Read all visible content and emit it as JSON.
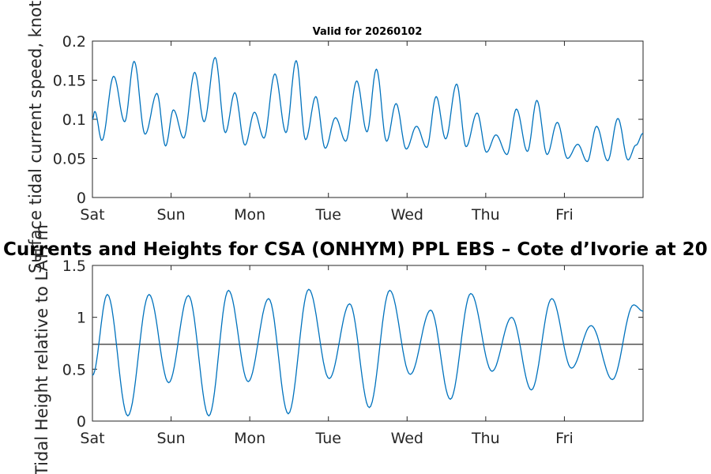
{
  "chart_data": [
    {
      "type": "line",
      "title": "Valid for 20260102",
      "xlabel": "",
      "ylabel": "Surface tidal current speed, knots",
      "ylim": [
        0,
        0.2
      ],
      "xlim": [
        0,
        7
      ],
      "yticks": [
        0,
        0.05,
        0.1,
        0.15,
        0.2
      ],
      "ytick_labels": [
        "0",
        "0.05",
        "0.1",
        "0.15",
        "0.2"
      ],
      "xtick_positions": [
        0,
        1,
        2,
        3,
        4,
        5,
        6
      ],
      "xtick_labels": [
        "Sat",
        "Sun",
        "Mon",
        "Tue",
        "Wed",
        "Thu",
        "Fri"
      ],
      "line_color": "#0072BD",
      "series": [
        {
          "name": "speed",
          "x": [
            0.0,
            0.03,
            0.12,
            0.27,
            0.41,
            0.53,
            0.67,
            0.82,
            0.93,
            1.03,
            1.16,
            1.3,
            1.42,
            1.56,
            1.69,
            1.81,
            1.94,
            2.06,
            2.18,
            2.32,
            2.46,
            2.59,
            2.71,
            2.84,
            2.96,
            3.09,
            3.22,
            3.36,
            3.49,
            3.61,
            3.74,
            3.86,
            3.99,
            4.12,
            4.25,
            4.37,
            4.49,
            4.63,
            4.75,
            4.89,
            5.01,
            5.13,
            5.27,
            5.39,
            5.53,
            5.65,
            5.78,
            5.91,
            6.04,
            6.17,
            6.29,
            6.41,
            6.55,
            6.68,
            6.81,
            6.91,
            7.0
          ],
          "values": [
            0.1,
            0.11,
            0.073,
            0.155,
            0.097,
            0.174,
            0.081,
            0.133,
            0.066,
            0.112,
            0.076,
            0.16,
            0.097,
            0.179,
            0.083,
            0.134,
            0.067,
            0.109,
            0.076,
            0.158,
            0.083,
            0.175,
            0.074,
            0.129,
            0.063,
            0.102,
            0.072,
            0.149,
            0.084,
            0.164,
            0.072,
            0.12,
            0.062,
            0.091,
            0.064,
            0.129,
            0.075,
            0.145,
            0.065,
            0.108,
            0.058,
            0.08,
            0.055,
            0.113,
            0.059,
            0.124,
            0.055,
            0.096,
            0.05,
            0.068,
            0.046,
            0.091,
            0.047,
            0.101,
            0.048,
            0.067,
            0.082
          ]
        }
      ]
    },
    {
      "type": "line",
      "title": "Currents and Heights for CSA (ONHYM) PPL EBS  – Cote d’Ivorie at 20",
      "xlabel": "",
      "ylabel": "Tidal Height relative to LAT, m",
      "ylim": [
        0,
        1.5
      ],
      "xlim": [
        0,
        7
      ],
      "yticks": [
        0,
        0.5,
        1,
        1.5
      ],
      "ytick_labels": [
        "0",
        "0.5",
        "1",
        "1.5"
      ],
      "xtick_positions": [
        0,
        1,
        2,
        3,
        4,
        5,
        6
      ],
      "xtick_labels": [
        "Sat",
        "Sun",
        "Mon",
        "Tue",
        "Wed",
        "Thu",
        "Fri"
      ],
      "line_color": "#0072BD",
      "reference_line": 0.74,
      "reference_color": "#404040",
      "series": [
        {
          "name": "height",
          "x": [
            0.0,
            0.19,
            0.45,
            0.72,
            0.97,
            1.22,
            1.48,
            1.73,
            1.98,
            2.24,
            2.49,
            2.75,
            3.01,
            3.27,
            3.52,
            3.78,
            4.04,
            4.3,
            4.55,
            4.81,
            5.08,
            5.33,
            5.58,
            5.84,
            6.09,
            6.34,
            6.61,
            6.88,
            7.0
          ],
          "values": [
            0.44,
            1.22,
            0.05,
            1.22,
            0.37,
            1.21,
            0.05,
            1.26,
            0.38,
            1.18,
            0.07,
            1.27,
            0.41,
            1.13,
            0.13,
            1.26,
            0.45,
            1.07,
            0.21,
            1.23,
            0.48,
            1.0,
            0.3,
            1.18,
            0.51,
            0.92,
            0.4,
            1.12,
            1.06
          ]
        }
      ]
    }
  ]
}
